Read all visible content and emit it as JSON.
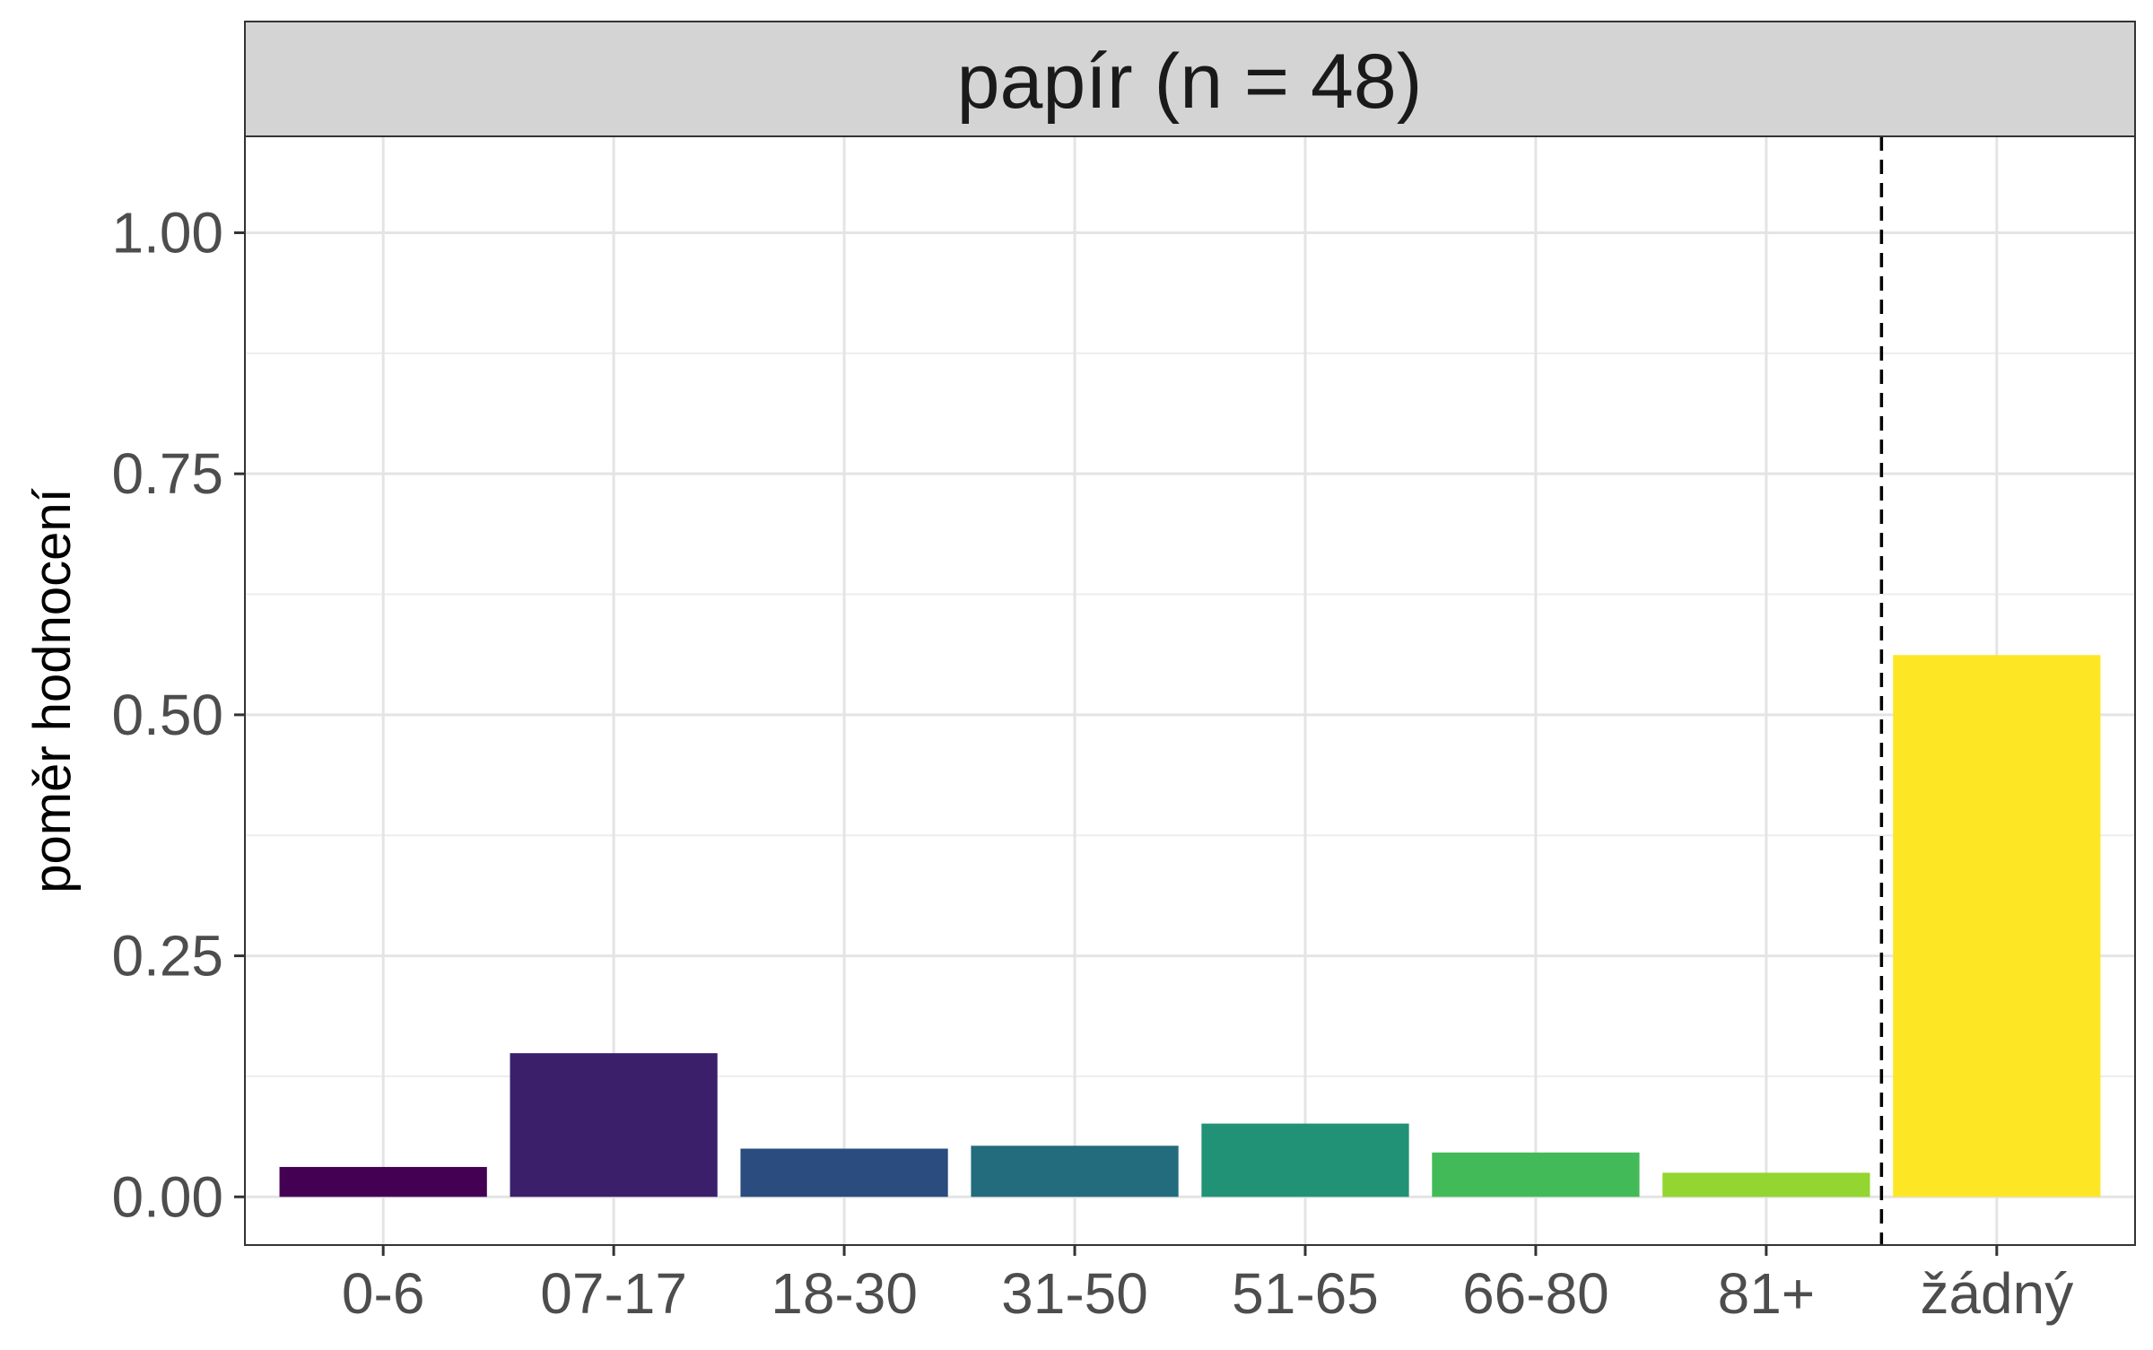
{
  "chart_data": {
    "type": "bar",
    "title": "papír (n = 48)",
    "xlabel": "",
    "ylabel": "poměr hodnocení",
    "categories": [
      "0-6",
      "07-17",
      "18-30",
      "31-50",
      "51-65",
      "66-80",
      "81+",
      "žádný"
    ],
    "values": [
      0.031,
      0.149,
      0.05,
      0.053,
      0.076,
      0.046,
      0.025,
      0.562
    ],
    "colors": [
      "#440154",
      "#3B1F6B",
      "#2A4C7E",
      "#226C7E",
      "#219276",
      "#43BA58",
      "#93D531",
      "#FDE725"
    ],
    "ylim": [
      -0.05,
      1.1
    ],
    "yticks": [
      0.0,
      0.25,
      0.5,
      0.75,
      1.0
    ],
    "ytick_labels": [
      "0.00",
      "0.25",
      "0.50",
      "0.75",
      "1.00"
    ],
    "separator_after_category": "81+",
    "separator_style": "dashed",
    "grid": true,
    "legend": "none"
  }
}
